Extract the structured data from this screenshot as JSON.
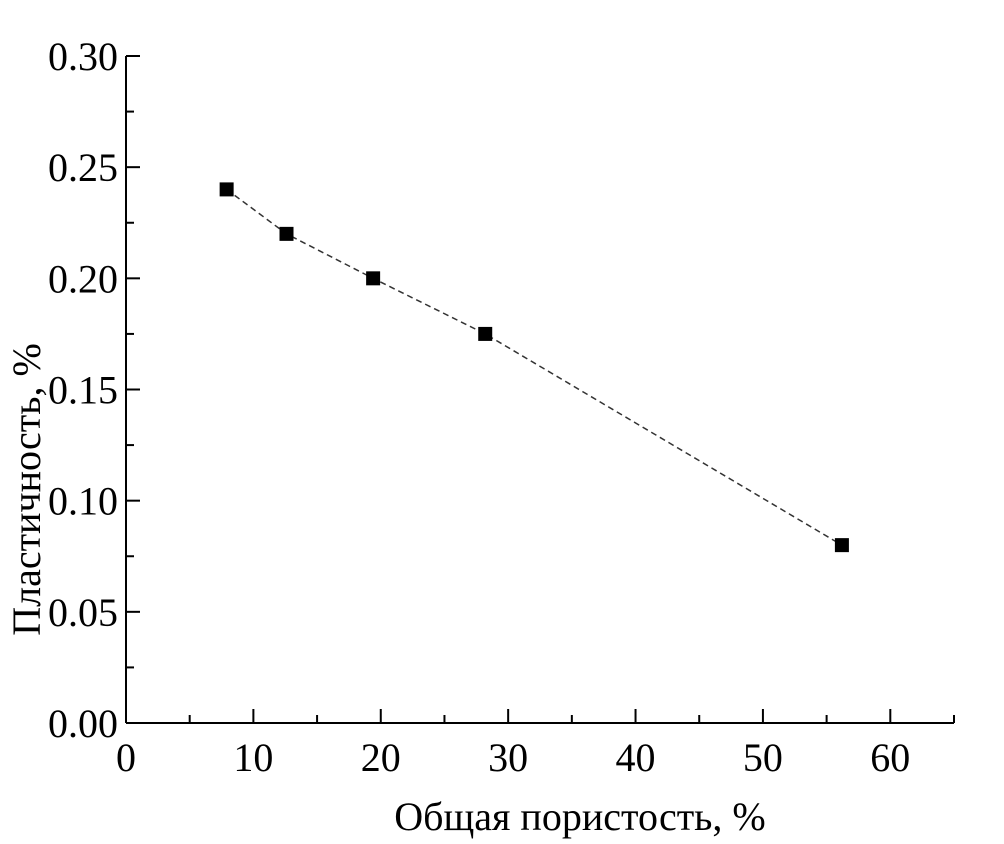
{
  "chart_data": {
    "type": "scatter",
    "title": "",
    "xlabel": "Общая пористость, %",
    "ylabel": "Пластичность, %",
    "xlim": [
      0,
      65
    ],
    "ylim": [
      0,
      0.3
    ],
    "x_ticks": [
      "0",
      "10",
      "20",
      "30",
      "40",
      "50",
      "60"
    ],
    "y_ticks": [
      "0.00",
      "0.05",
      "0.10",
      "0.15",
      "0.20",
      "0.25",
      "0.30"
    ],
    "grid": false,
    "legend": "none",
    "series": [
      {
        "x": [
          7.9,
          12.6,
          19.4,
          28.2,
          56.2
        ],
        "y": [
          0.24,
          0.22,
          0.2,
          0.175,
          0.08
        ],
        "marker": "square",
        "line": "dashed",
        "color": "#000000"
      }
    ]
  }
}
